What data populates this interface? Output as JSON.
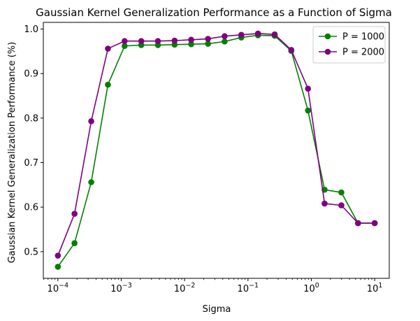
{
  "chart_data": {
    "type": "line",
    "title": "Gaussian Kernel Generalization Performance as a Function of Sigma",
    "xlabel": "Sigma",
    "ylabel": "Gaussian Kernel Generalization Performance (%)",
    "xscale": "log",
    "xlim": [
      5.89e-05,
      16.98
    ],
    "ylim": [
      0.44,
      1.015
    ],
    "xticks": [
      {
        "value": 0.0001,
        "base": "10",
        "exp": "−4"
      },
      {
        "value": 0.001,
        "base": "10",
        "exp": "−3"
      },
      {
        "value": 0.01,
        "base": "10",
        "exp": "−2"
      },
      {
        "value": 0.1,
        "base": "10",
        "exp": "−1"
      },
      {
        "value": 1,
        "base": "10",
        "exp": "0"
      },
      {
        "value": 10,
        "base": "10",
        "exp": "1"
      }
    ],
    "yticks": [
      {
        "value": 0.5,
        "label": "0.5"
      },
      {
        "value": 0.6,
        "label": "0.6"
      },
      {
        "value": 0.7,
        "label": "0.7"
      },
      {
        "value": 0.8,
        "label": "0.8"
      },
      {
        "value": 0.9,
        "label": "0.9"
      },
      {
        "value": 1.0,
        "label": "1.0"
      }
    ],
    "grid": false,
    "legend_position": "top-right",
    "x": [
      0.0001,
      0.000183,
      0.000336,
      0.000616,
      0.00113,
      0.00207,
      0.00379,
      0.00695,
      0.0127,
      0.0234,
      0.0428,
      0.0785,
      0.144,
      0.264,
      0.483,
      0.886,
      1.62,
      2.98,
      5.46,
      10.0
    ],
    "series": [
      {
        "name": "P = 1000",
        "color": "#008000",
        "values": [
          0.466,
          0.519,
          0.656,
          0.875,
          0.962,
          0.964,
          0.964,
          0.965,
          0.966,
          0.967,
          0.972,
          0.981,
          0.986,
          0.985,
          0.951,
          0.817,
          0.639,
          0.633,
          0.564,
          0.564
        ]
      },
      {
        "name": "P = 2000",
        "color": "#800080",
        "values": [
          0.491,
          0.585,
          0.793,
          0.956,
          0.973,
          0.973,
          0.973,
          0.974,
          0.976,
          0.978,
          0.984,
          0.987,
          0.99,
          0.988,
          0.953,
          0.866,
          0.608,
          0.604,
          0.564,
          0.564
        ]
      }
    ]
  }
}
